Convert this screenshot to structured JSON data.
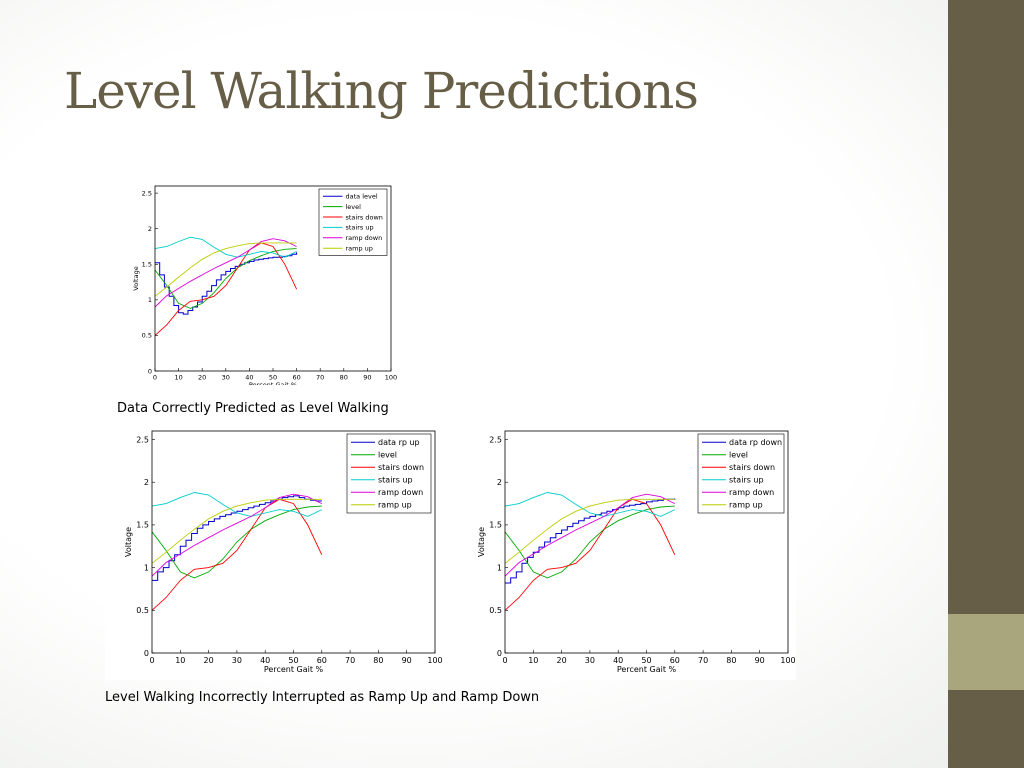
{
  "slide": {
    "title": "Level Walking Predictions",
    "caption_top": "Data Correctly Predicted as Level Walking",
    "caption_bottom": "Level Walking Incorrectly Interrupted as Ramp Up and Ramp Down",
    "colors": {
      "title": "#675e47",
      "sidebar": "#675e47",
      "sidebar_accent": "#a9a57c"
    }
  },
  "chart_data": [
    {
      "type": "line",
      "xlabel": "Percent Gait %",
      "ylabel": "Voltage",
      "xlim": [
        0,
        100
      ],
      "ylim": [
        0,
        2.6
      ],
      "xticks": [
        0,
        10,
        20,
        30,
        40,
        50,
        60,
        70,
        80,
        90,
        100
      ],
      "yticks": [
        0,
        0.5,
        1,
        1.5,
        2,
        2.5
      ],
      "legend": "top-right",
      "series": [
        {
          "name": "data level",
          "color": "#0000cc",
          "step": true,
          "x": [
            0,
            2,
            4,
            6,
            8,
            10,
            12,
            14,
            16,
            18,
            20,
            22,
            24,
            26,
            28,
            30,
            32,
            34,
            36,
            38,
            40,
            42,
            44,
            46,
            48,
            50,
            52,
            54,
            56,
            58,
            60
          ],
          "y": [
            1.52,
            1.35,
            1.18,
            1.05,
            0.92,
            0.82,
            0.8,
            0.85,
            0.9,
            0.97,
            1.05,
            1.12,
            1.2,
            1.28,
            1.35,
            1.4,
            1.44,
            1.47,
            1.5,
            1.52,
            1.54,
            1.56,
            1.57,
            1.58,
            1.59,
            1.6,
            1.6,
            1.61,
            1.62,
            1.64,
            1.67
          ]
        },
        {
          "name": "level",
          "color": "#00aa00",
          "x": [
            0,
            5,
            10,
            15,
            20,
            25,
            30,
            35,
            40,
            45,
            50,
            55,
            60
          ],
          "y": [
            1.42,
            1.2,
            0.95,
            0.88,
            0.95,
            1.1,
            1.3,
            1.45,
            1.55,
            1.62,
            1.68,
            1.71,
            1.72
          ]
        },
        {
          "name": "stairs down",
          "color": "#ff0000",
          "x": [
            0,
            5,
            10,
            15,
            20,
            25,
            30,
            35,
            40,
            45,
            50,
            55,
            60
          ],
          "y": [
            0.5,
            0.65,
            0.85,
            0.98,
            1.0,
            1.05,
            1.2,
            1.45,
            1.7,
            1.8,
            1.75,
            1.5,
            1.15
          ]
        },
        {
          "name": "stairs up",
          "color": "#00cccc",
          "x": [
            0,
            5,
            10,
            15,
            20,
            25,
            30,
            35,
            40,
            45,
            50,
            55,
            60
          ],
          "y": [
            1.72,
            1.75,
            1.82,
            1.88,
            1.85,
            1.74,
            1.64,
            1.6,
            1.64,
            1.68,
            1.66,
            1.6,
            1.68
          ]
        },
        {
          "name": "ramp down",
          "color": "#dd00dd",
          "x": [
            0,
            5,
            10,
            15,
            20,
            25,
            30,
            35,
            40,
            45,
            50,
            55,
            60
          ],
          "y": [
            0.9,
            1.06,
            1.16,
            1.26,
            1.35,
            1.44,
            1.52,
            1.6,
            1.7,
            1.82,
            1.86,
            1.83,
            1.75
          ]
        },
        {
          "name": "ramp up",
          "color": "#bbcc00",
          "x": [
            0,
            5,
            10,
            15,
            20,
            25,
            30,
            35,
            40,
            45,
            50,
            55,
            60
          ],
          "y": [
            1.05,
            1.18,
            1.32,
            1.45,
            1.57,
            1.66,
            1.72,
            1.76,
            1.79,
            1.8,
            1.8,
            1.8,
            1.8
          ]
        }
      ]
    },
    {
      "type": "line",
      "xlabel": "Percent Gait %",
      "ylabel": "Voltage",
      "xlim": [
        0,
        100
      ],
      "ylim": [
        0,
        2.6
      ],
      "xticks": [
        0,
        10,
        20,
        30,
        40,
        50,
        60,
        70,
        80,
        90,
        100
      ],
      "yticks": [
        0,
        0.5,
        1,
        1.5,
        2,
        2.5
      ],
      "legend": "top-right",
      "series": [
        {
          "name": "data rp up",
          "color": "#0000cc",
          "step": true,
          "x": [
            0,
            2,
            4,
            6,
            8,
            10,
            12,
            14,
            16,
            18,
            20,
            22,
            24,
            26,
            28,
            30,
            32,
            34,
            36,
            38,
            40,
            42,
            44,
            46,
            48,
            50,
            52,
            54,
            56,
            58,
            60
          ],
          "y": [
            0.85,
            0.95,
            1.0,
            1.08,
            1.15,
            1.25,
            1.32,
            1.4,
            1.46,
            1.5,
            1.54,
            1.57,
            1.6,
            1.62,
            1.64,
            1.66,
            1.68,
            1.7,
            1.72,
            1.74,
            1.76,
            1.78,
            1.8,
            1.82,
            1.83,
            1.84,
            1.82,
            1.8,
            1.79,
            1.78,
            1.78
          ]
        },
        {
          "name": "level",
          "color": "#00aa00",
          "x": [
            0,
            5,
            10,
            15,
            20,
            25,
            30,
            35,
            40,
            45,
            50,
            55,
            60
          ],
          "y": [
            1.42,
            1.2,
            0.95,
            0.88,
            0.95,
            1.1,
            1.3,
            1.45,
            1.55,
            1.62,
            1.68,
            1.71,
            1.72
          ]
        },
        {
          "name": "stairs down",
          "color": "#ff0000",
          "x": [
            0,
            5,
            10,
            15,
            20,
            25,
            30,
            35,
            40,
            45,
            50,
            55,
            60
          ],
          "y": [
            0.5,
            0.65,
            0.85,
            0.98,
            1.0,
            1.05,
            1.2,
            1.45,
            1.7,
            1.8,
            1.75,
            1.5,
            1.15
          ]
        },
        {
          "name": "stairs up",
          "color": "#00cccc",
          "x": [
            0,
            5,
            10,
            15,
            20,
            25,
            30,
            35,
            40,
            45,
            50,
            55,
            60
          ],
          "y": [
            1.72,
            1.75,
            1.82,
            1.88,
            1.85,
            1.74,
            1.64,
            1.6,
            1.64,
            1.68,
            1.66,
            1.6,
            1.68
          ]
        },
        {
          "name": "ramp down",
          "color": "#dd00dd",
          "x": [
            0,
            5,
            10,
            15,
            20,
            25,
            30,
            35,
            40,
            45,
            50,
            55,
            60
          ],
          "y": [
            0.9,
            1.06,
            1.16,
            1.26,
            1.35,
            1.44,
            1.52,
            1.6,
            1.7,
            1.82,
            1.86,
            1.83,
            1.75
          ]
        },
        {
          "name": "ramp up",
          "color": "#bbcc00",
          "x": [
            0,
            5,
            10,
            15,
            20,
            25,
            30,
            35,
            40,
            45,
            50,
            55,
            60
          ],
          "y": [
            1.05,
            1.18,
            1.32,
            1.45,
            1.57,
            1.66,
            1.72,
            1.76,
            1.79,
            1.8,
            1.8,
            1.8,
            1.8
          ]
        }
      ]
    },
    {
      "type": "line",
      "xlabel": "Percent Gait %",
      "ylabel": "Voltage",
      "xlim": [
        0,
        100
      ],
      "ylim": [
        0,
        2.6
      ],
      "xticks": [
        0,
        10,
        20,
        30,
        40,
        50,
        60,
        70,
        80,
        90,
        100
      ],
      "yticks": [
        0,
        0.5,
        1,
        1.5,
        2,
        2.5
      ],
      "legend": "top-right",
      "series": [
        {
          "name": "data rp down",
          "color": "#0000cc",
          "step": true,
          "x": [
            0,
            2,
            4,
            6,
            8,
            10,
            12,
            14,
            16,
            18,
            20,
            22,
            24,
            26,
            28,
            30,
            32,
            34,
            36,
            38,
            40,
            42,
            44,
            46,
            48,
            50,
            52,
            54,
            56,
            58,
            60
          ],
          "y": [
            0.82,
            0.88,
            0.95,
            1.05,
            1.12,
            1.18,
            1.24,
            1.3,
            1.35,
            1.4,
            1.44,
            1.48,
            1.52,
            1.55,
            1.58,
            1.6,
            1.62,
            1.64,
            1.66,
            1.68,
            1.7,
            1.72,
            1.73,
            1.74,
            1.75,
            1.77,
            1.78,
            1.79,
            1.8,
            1.8,
            1.81
          ]
        },
        {
          "name": "level",
          "color": "#00aa00",
          "x": [
            0,
            5,
            10,
            15,
            20,
            25,
            30,
            35,
            40,
            45,
            50,
            55,
            60
          ],
          "y": [
            1.42,
            1.2,
            0.95,
            0.88,
            0.95,
            1.1,
            1.3,
            1.45,
            1.55,
            1.62,
            1.68,
            1.71,
            1.72
          ]
        },
        {
          "name": "stairs down",
          "color": "#ff0000",
          "x": [
            0,
            5,
            10,
            15,
            20,
            25,
            30,
            35,
            40,
            45,
            50,
            55,
            60
          ],
          "y": [
            0.5,
            0.65,
            0.85,
            0.98,
            1.0,
            1.05,
            1.2,
            1.45,
            1.7,
            1.8,
            1.75,
            1.5,
            1.15
          ]
        },
        {
          "name": "stairs up",
          "color": "#00cccc",
          "x": [
            0,
            5,
            10,
            15,
            20,
            25,
            30,
            35,
            40,
            45,
            50,
            55,
            60
          ],
          "y": [
            1.72,
            1.75,
            1.82,
            1.88,
            1.85,
            1.74,
            1.64,
            1.6,
            1.64,
            1.68,
            1.66,
            1.6,
            1.68
          ]
        },
        {
          "name": "ramp down",
          "color": "#dd00dd",
          "x": [
            0,
            5,
            10,
            15,
            20,
            25,
            30,
            35,
            40,
            45,
            50,
            55,
            60
          ],
          "y": [
            0.9,
            1.06,
            1.16,
            1.26,
            1.35,
            1.44,
            1.52,
            1.6,
            1.7,
            1.82,
            1.86,
            1.83,
            1.75
          ]
        },
        {
          "name": "ramp up",
          "color": "#bbcc00",
          "x": [
            0,
            5,
            10,
            15,
            20,
            25,
            30,
            35,
            40,
            45,
            50,
            55,
            60
          ],
          "y": [
            1.05,
            1.18,
            1.32,
            1.45,
            1.57,
            1.66,
            1.72,
            1.76,
            1.79,
            1.8,
            1.8,
            1.8,
            1.8
          ]
        }
      ]
    }
  ]
}
